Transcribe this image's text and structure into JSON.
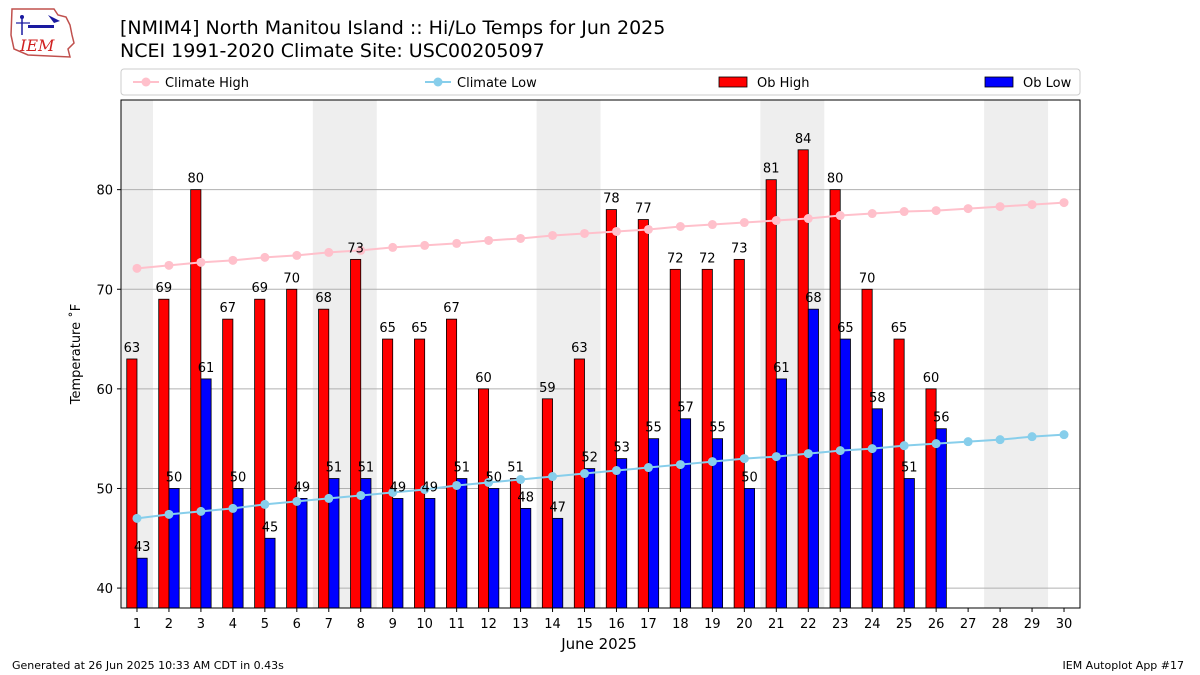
{
  "header": {
    "title_line1": "[NMIM4] North Manitou Island :: Hi/Lo Temps for Jun 2025",
    "title_line2": "NCEI 1991-2020 Climate Site: USC00205097",
    "logo_text": "IEM"
  },
  "footer": {
    "generated": "Generated at 26 Jun 2025 10:33 AM CDT in 0.43s",
    "app": "IEM Autoplot App #17"
  },
  "chart_data": {
    "type": "bar",
    "xlabel": "June 2025",
    "ylabel": "Temperature ˚F",
    "ylim": [
      38,
      89
    ],
    "yticks": [
      40,
      50,
      60,
      70,
      80
    ],
    "grid": true,
    "legend_position": "top",
    "categories": [
      "1",
      "2",
      "3",
      "4",
      "5",
      "6",
      "7",
      "8",
      "9",
      "10",
      "11",
      "12",
      "13",
      "14",
      "15",
      "16",
      "17",
      "18",
      "19",
      "20",
      "21",
      "22",
      "23",
      "24",
      "25",
      "26",
      "27",
      "28",
      "29",
      "30"
    ],
    "weekend_shading": [
      [
        1,
        1
      ],
      [
        7,
        8
      ],
      [
        14,
        15
      ],
      [
        21,
        22
      ],
      [
        28,
        29
      ]
    ],
    "colors": {
      "ob_high": "#ff0000",
      "ob_low": "#0000ff",
      "climate_high": "#ffc0cb",
      "climate_low": "#87ceeb",
      "shade": "#eeeeee"
    },
    "series": [
      {
        "name": "Climate High",
        "kind": "line",
        "values": [
          72.1,
          72.4,
          72.7,
          72.9,
          73.2,
          73.4,
          73.7,
          73.9,
          74.2,
          74.4,
          74.6,
          74.9,
          75.1,
          75.4,
          75.6,
          75.8,
          76.0,
          76.3,
          76.5,
          76.7,
          76.9,
          77.1,
          77.4,
          77.6,
          77.8,
          77.9,
          78.1,
          78.3,
          78.5,
          78.7
        ]
      },
      {
        "name": "Climate Low",
        "kind": "line",
        "values": [
          47.0,
          47.4,
          47.7,
          48.0,
          48.4,
          48.7,
          49.0,
          49.3,
          49.6,
          49.9,
          50.3,
          50.6,
          50.9,
          51.2,
          51.5,
          51.8,
          52.1,
          52.4,
          52.7,
          53.0,
          53.2,
          53.5,
          53.8,
          54.0,
          54.3,
          54.5,
          54.7,
          54.9,
          55.2,
          55.4
        ]
      },
      {
        "name": "Ob High",
        "kind": "bar",
        "values": [
          63,
          69,
          80,
          67,
          69,
          70,
          68,
          73,
          65,
          65,
          67,
          60,
          51,
          59,
          63,
          78,
          77,
          72,
          72,
          73,
          81,
          84,
          80,
          70,
          65,
          60,
          null,
          null,
          null,
          null
        ]
      },
      {
        "name": "Ob Low",
        "kind": "bar",
        "values": [
          43,
          50,
          61,
          50,
          45,
          49,
          51,
          51,
          49,
          49,
          51,
          50,
          48,
          47,
          52,
          53,
          55,
          57,
          55,
          50,
          61,
          68,
          65,
          58,
          51,
          56,
          null,
          null,
          null,
          null
        ]
      }
    ]
  }
}
